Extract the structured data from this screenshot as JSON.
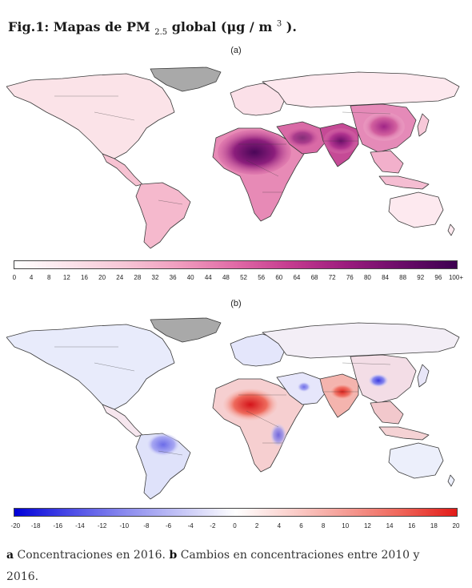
{
  "figure": {
    "title_prefix": "Fig.1: Mapas de PM ",
    "title_sub": "2.5",
    "title_mid": " global (μg / m ",
    "title_sup": "3",
    "title_suffix": " )."
  },
  "panels": [
    {
      "label": "(a)",
      "description": "PM2.5 concentrations 2016",
      "colorscale": [
        "#ffffff",
        "#fbe3ea",
        "#f7c6d6",
        "#f09cbe",
        "#e06aa6",
        "#c43b8f",
        "#9b1c7e",
        "#6a0c68",
        "#3d0150"
      ],
      "ticks": [
        "0",
        "4",
        "8",
        "12",
        "16",
        "20",
        "24",
        "28",
        "32",
        "36",
        "40",
        "44",
        "48",
        "52",
        "56",
        "60",
        "64",
        "68",
        "72",
        "76",
        "80",
        "84",
        "88",
        "92",
        "96",
        "100+"
      ]
    },
    {
      "label": "(b)",
      "description": "Change in concentrations 2010-2016",
      "colorscale": [
        "#0000d8",
        "#4a4ae6",
        "#8a8aee",
        "#c4c4f6",
        "#ffffff",
        "#fbd0cc",
        "#f59c94",
        "#ef6458",
        "#e21b18"
      ],
      "ticks": [
        "-20",
        "-18",
        "-16",
        "-14",
        "-12",
        "-10",
        "-8",
        "-6",
        "-4",
        "-2",
        "0",
        "2",
        "4",
        "6",
        "8",
        "10",
        "12",
        "14",
        "16",
        "18",
        "20"
      ]
    }
  ],
  "caption": {
    "a_letter": "a",
    "a_text": " Concentraciones en 2016. ",
    "b_letter": "b",
    "b_text": " Cambios en concentraciones entre 2010 y 2016."
  },
  "colors": {
    "land_outline": "#3a3a3a",
    "greenland": "#a9a9a9",
    "land_low_a": "#fbe6ea",
    "land_low_b": "#eef0fb"
  }
}
